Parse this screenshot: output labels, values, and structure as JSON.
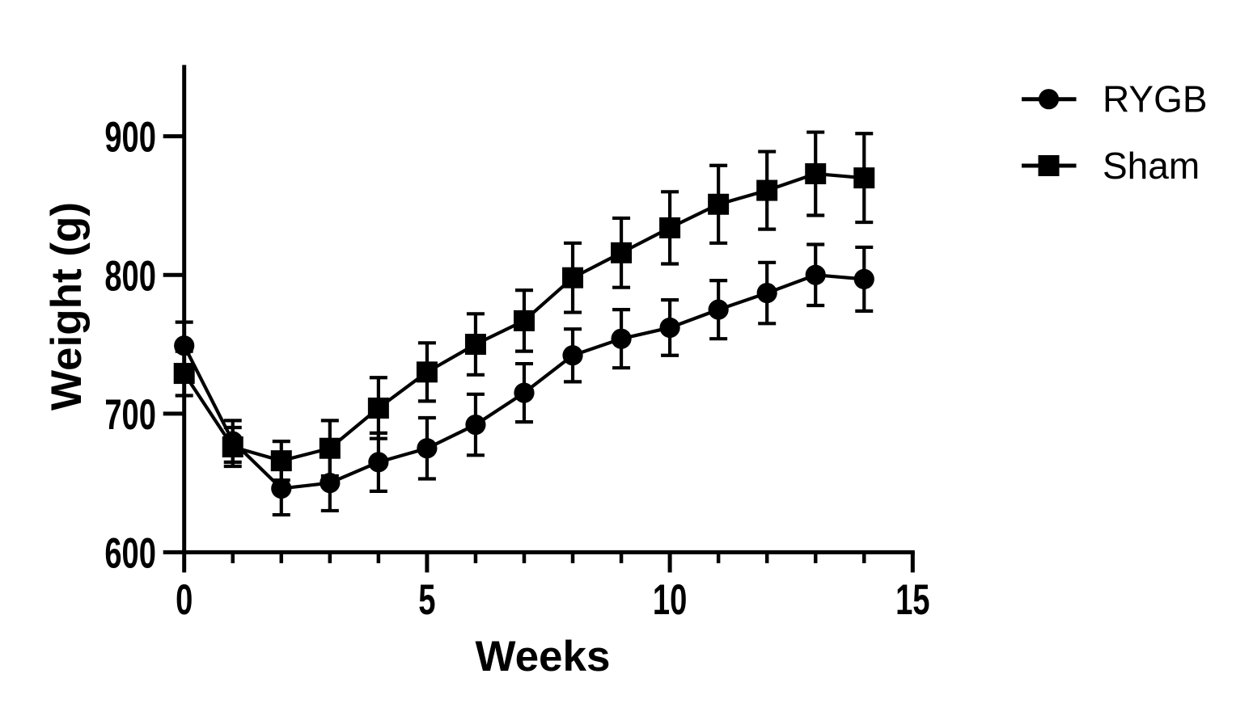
{
  "chart_data": {
    "type": "line",
    "title": "",
    "xlabel": "Weeks",
    "ylabel": "Weight (g)",
    "x": [
      0,
      1,
      2,
      3,
      4,
      5,
      6,
      7,
      8,
      9,
      10,
      11,
      12,
      13,
      14
    ],
    "series": [
      {
        "name": "RYGB",
        "marker": "circle",
        "color": "#000000",
        "values": [
          749,
          680,
          646,
          650,
          665,
          675,
          692,
          715,
          742,
          754,
          762,
          775,
          787,
          800,
          797
        ],
        "errors": [
          17,
          15,
          19,
          20,
          21,
          22,
          22,
          21,
          19,
          21,
          20,
          21,
          22,
          22,
          23
        ]
      },
      {
        "name": "Sham",
        "marker": "square",
        "color": "#000000",
        "values": [
          729,
          676,
          666,
          675,
          704,
          730,
          750,
          767,
          798,
          816,
          834,
          851,
          861,
          873,
          870
        ],
        "errors": [
          16,
          14,
          14,
          20,
          22,
          21,
          22,
          22,
          25,
          25,
          26,
          28,
          28,
          30,
          32
        ]
      }
    ],
    "xlim": [
      0,
      15
    ],
    "ylim": [
      600,
      950
    ],
    "x_major_ticks": [
      0,
      5,
      10,
      15
    ],
    "x_minor_ticks": [
      1,
      2,
      3,
      4,
      6,
      7,
      8,
      9,
      11,
      12,
      13,
      14
    ],
    "y_ticks": [
      600,
      700,
      800,
      900
    ],
    "error_bars": "both",
    "grid": false,
    "legend_position": "top-right",
    "legend_entries": [
      "RYGB",
      "Sham"
    ],
    "background": "#ffffff",
    "foreground": "#000000"
  }
}
